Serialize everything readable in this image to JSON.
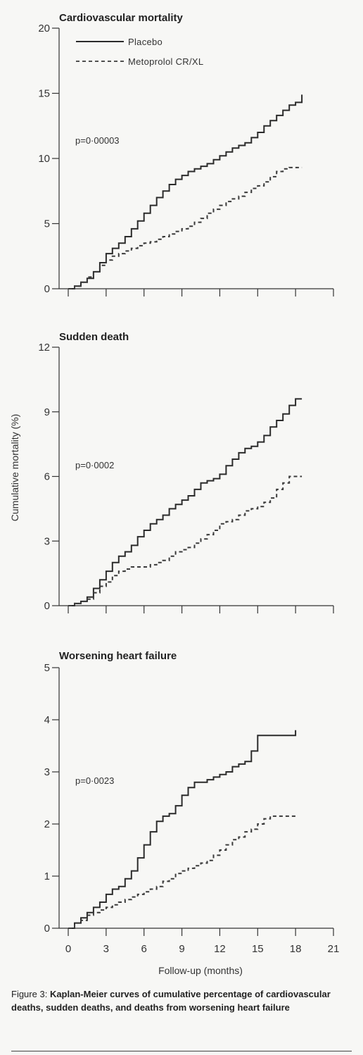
{
  "figure_caption": {
    "label": "Figure 3:",
    "text": "Kaplan-Meier curves of cumulative percentage of cardiovascular deaths, sudden deaths, and deaths from worsening heart failure"
  },
  "legend": {
    "placebo": "Placebo",
    "metoprolol": "Metoprolol CR/XL"
  },
  "colors": {
    "placebo": "#2b2b2b",
    "metoprolol": "#3a3a3a",
    "axis": "#333333"
  },
  "shared_ylabel": "Cumulative mortality (%)",
  "shared_xlabel": "Follow-up (months)",
  "chart_data": [
    {
      "type": "line",
      "title": "Cardiovascular mortality",
      "annotation": "p=0·00003",
      "xlabel": "",
      "ylabel": "",
      "xlim": [
        0,
        21
      ],
      "ylim": [
        0,
        20
      ],
      "yticks": [
        0,
        5,
        10,
        15,
        20
      ],
      "xticks": [
        0,
        3,
        6,
        9,
        12,
        15,
        18,
        21
      ],
      "show_xtick_labels": false,
      "legend": "top-left",
      "series": [
        {
          "name": "Placebo",
          "style": "solid",
          "points": [
            [
              0,
              0
            ],
            [
              0.5,
              0.2
            ],
            [
              1,
              0.5
            ],
            [
              1.5,
              0.8
            ],
            [
              2,
              1.3
            ],
            [
              2.5,
              2
            ],
            [
              3,
              2.7
            ],
            [
              3.5,
              3.1
            ],
            [
              4,
              3.5
            ],
            [
              4.5,
              4
            ],
            [
              5,
              4.6
            ],
            [
              5.5,
              5.2
            ],
            [
              6,
              5.8
            ],
            [
              6.5,
              6.4
            ],
            [
              7,
              7
            ],
            [
              7.5,
              7.5
            ],
            [
              8,
              8
            ],
            [
              8.5,
              8.4
            ],
            [
              9,
              8.7
            ],
            [
              9.5,
              9
            ],
            [
              10,
              9.2
            ],
            [
              10.5,
              9.4
            ],
            [
              11,
              9.6
            ],
            [
              11.5,
              9.9
            ],
            [
              12,
              10.2
            ],
            [
              12.5,
              10.5
            ],
            [
              13,
              10.8
            ],
            [
              13.5,
              11
            ],
            [
              14,
              11.2
            ],
            [
              14.5,
              11.6
            ],
            [
              15,
              12
            ],
            [
              15.5,
              12.5
            ],
            [
              16,
              12.9
            ],
            [
              16.5,
              13.3
            ],
            [
              17,
              13.7
            ],
            [
              17.5,
              14.1
            ],
            [
              18,
              14.3
            ],
            [
              18.5,
              14.9
            ]
          ]
        },
        {
          "name": "Metoprolol CR/XL",
          "style": "dashed",
          "points": [
            [
              0,
              0
            ],
            [
              0.5,
              0.2
            ],
            [
              1,
              0.5
            ],
            [
              1.5,
              0.9
            ],
            [
              2,
              1.3
            ],
            [
              2.5,
              1.8
            ],
            [
              3,
              2.2
            ],
            [
              3.5,
              2.5
            ],
            [
              4,
              2.7
            ],
            [
              4.5,
              2.9
            ],
            [
              5,
              3.1
            ],
            [
              5.5,
              3.3
            ],
            [
              6,
              3.5
            ],
            [
              6.5,
              3.6
            ],
            [
              7,
              3.8
            ],
            [
              7.5,
              4
            ],
            [
              8,
              4.2
            ],
            [
              8.5,
              4.4
            ],
            [
              9,
              4.6
            ],
            [
              9.5,
              4.8
            ],
            [
              10,
              5.1
            ],
            [
              10.5,
              5.4
            ],
            [
              11,
              5.8
            ],
            [
              11.5,
              6.1
            ],
            [
              12,
              6.4
            ],
            [
              12.5,
              6.7
            ],
            [
              13,
              6.9
            ],
            [
              13.5,
              7.1
            ],
            [
              14,
              7.4
            ],
            [
              14.5,
              7.7
            ],
            [
              15,
              7.9
            ],
            [
              15.5,
              8.2
            ],
            [
              16,
              8.6
            ],
            [
              16.5,
              9
            ],
            [
              17,
              9.2
            ],
            [
              17.5,
              9.3
            ],
            [
              18,
              9.3
            ],
            [
              18.5,
              9.3
            ]
          ]
        }
      ]
    },
    {
      "type": "line",
      "title": "Sudden death",
      "annotation": "p=0·0002",
      "xlabel": "",
      "ylabel": "",
      "xlim": [
        0,
        21
      ],
      "ylim": [
        0,
        12
      ],
      "yticks": [
        0,
        3,
        6,
        9,
        12
      ],
      "xticks": [
        0,
        3,
        6,
        9,
        12,
        15,
        18,
        21
      ],
      "show_xtick_labels": false,
      "series": [
        {
          "name": "Placebo",
          "style": "solid",
          "points": [
            [
              0,
              0
            ],
            [
              0.5,
              0.1
            ],
            [
              1,
              0.2
            ],
            [
              1.5,
              0.4
            ],
            [
              2,
              0.8
            ],
            [
              2.5,
              1.2
            ],
            [
              3,
              1.6
            ],
            [
              3.5,
              2
            ],
            [
              4,
              2.3
            ],
            [
              4.5,
              2.5
            ],
            [
              5,
              2.8
            ],
            [
              5.5,
              3.2
            ],
            [
              6,
              3.5
            ],
            [
              6.5,
              3.8
            ],
            [
              7,
              4
            ],
            [
              7.5,
              4.2
            ],
            [
              8,
              4.5
            ],
            [
              8.5,
              4.7
            ],
            [
              9,
              4.9
            ],
            [
              9.5,
              5.1
            ],
            [
              10,
              5.4
            ],
            [
              10.5,
              5.7
            ],
            [
              11,
              5.8
            ],
            [
              11.5,
              5.9
            ],
            [
              12,
              6.1
            ],
            [
              12.5,
              6.5
            ],
            [
              13,
              6.8
            ],
            [
              13.5,
              7.1
            ],
            [
              14,
              7.3
            ],
            [
              14.5,
              7.4
            ],
            [
              15,
              7.6
            ],
            [
              15.5,
              7.9
            ],
            [
              16,
              8.3
            ],
            [
              16.5,
              8.6
            ],
            [
              17,
              8.9
            ],
            [
              17.5,
              9.3
            ],
            [
              18,
              9.6
            ],
            [
              18.5,
              9.6
            ]
          ]
        },
        {
          "name": "Metoprolol CR/XL",
          "style": "dashed",
          "points": [
            [
              0,
              0
            ],
            [
              0.5,
              0.1
            ],
            [
              1,
              0.2
            ],
            [
              1.5,
              0.3
            ],
            [
              2,
              0.6
            ],
            [
              2.5,
              0.9
            ],
            [
              3,
              1.1
            ],
            [
              3.5,
              1.4
            ],
            [
              4,
              1.6
            ],
            [
              4.5,
              1.7
            ],
            [
              5,
              1.8
            ],
            [
              5.5,
              1.8
            ],
            [
              6,
              1.8
            ],
            [
              6.5,
              1.9
            ],
            [
              7,
              2
            ],
            [
              7.5,
              2.1
            ],
            [
              8,
              2.3
            ],
            [
              8.5,
              2.5
            ],
            [
              9,
              2.6
            ],
            [
              9.5,
              2.7
            ],
            [
              10,
              2.9
            ],
            [
              10.5,
              3.1
            ],
            [
              11,
              3.3
            ],
            [
              11.5,
              3.5
            ],
            [
              12,
              3.8
            ],
            [
              12.5,
              3.9
            ],
            [
              13,
              4
            ],
            [
              13.5,
              4.2
            ],
            [
              14,
              4.4
            ],
            [
              14.5,
              4.5
            ],
            [
              15,
              4.6
            ],
            [
              15.5,
              4.8
            ],
            [
              16,
              5
            ],
            [
              16.5,
              5.4
            ],
            [
              17,
              5.7
            ],
            [
              17.5,
              6
            ],
            [
              18,
              6
            ],
            [
              18.5,
              6
            ]
          ]
        }
      ]
    },
    {
      "type": "line",
      "title": "Worsening heart failure",
      "annotation": "p=0·0023",
      "xlabel": "Follow-up (months)",
      "ylabel": "",
      "xlim": [
        0,
        21
      ],
      "ylim": [
        0,
        5
      ],
      "yticks": [
        0,
        1,
        2,
        3,
        4,
        5
      ],
      "xticks": [
        0,
        3,
        6,
        9,
        12,
        15,
        18,
        21
      ],
      "show_xtick_labels": true,
      "series": [
        {
          "name": "Placebo",
          "style": "solid",
          "points": [
            [
              0,
              0
            ],
            [
              0.5,
              0.1
            ],
            [
              1,
              0.2
            ],
            [
              1.5,
              0.3
            ],
            [
              2,
              0.4
            ],
            [
              2.5,
              0.5
            ],
            [
              3,
              0.65
            ],
            [
              3.5,
              0.75
            ],
            [
              4,
              0.8
            ],
            [
              4.5,
              0.95
            ],
            [
              5,
              1.1
            ],
            [
              5.5,
              1.35
            ],
            [
              6,
              1.6
            ],
            [
              6.5,
              1.85
            ],
            [
              7,
              2.05
            ],
            [
              7.5,
              2.15
            ],
            [
              8,
              2.2
            ],
            [
              8.5,
              2.35
            ],
            [
              9,
              2.55
            ],
            [
              9.5,
              2.7
            ],
            [
              10,
              2.8
            ],
            [
              10.5,
              2.8
            ],
            [
              11,
              2.85
            ],
            [
              11.5,
              2.9
            ],
            [
              12,
              2.95
            ],
            [
              12.5,
              3
            ],
            [
              13,
              3.1
            ],
            [
              13.5,
              3.15
            ],
            [
              14,
              3.2
            ],
            [
              14.5,
              3.4
            ],
            [
              15,
              3.7
            ],
            [
              15.5,
              3.7
            ],
            [
              16,
              3.7
            ],
            [
              16.5,
              3.7
            ],
            [
              17,
              3.7
            ],
            [
              17.5,
              3.7
            ],
            [
              18,
              3.8
            ]
          ]
        },
        {
          "name": "Metoprolol CR/XL",
          "style": "dashed",
          "points": [
            [
              0,
              0
            ],
            [
              0.5,
              0.1
            ],
            [
              1,
              0.15
            ],
            [
              1.5,
              0.25
            ],
            [
              2,
              0.3
            ],
            [
              2.5,
              0.35
            ],
            [
              3,
              0.4
            ],
            [
              3.5,
              0.45
            ],
            [
              4,
              0.5
            ],
            [
              4.5,
              0.55
            ],
            [
              5,
              0.6
            ],
            [
              5.5,
              0.65
            ],
            [
              6,
              0.7
            ],
            [
              6.5,
              0.75
            ],
            [
              7,
              0.8
            ],
            [
              7.5,
              0.9
            ],
            [
              8,
              0.95
            ],
            [
              8.5,
              1.05
            ],
            [
              9,
              1.1
            ],
            [
              9.5,
              1.15
            ],
            [
              10,
              1.2
            ],
            [
              10.5,
              1.25
            ],
            [
              11,
              1.3
            ],
            [
              11.5,
              1.4
            ],
            [
              12,
              1.5
            ],
            [
              12.5,
              1.6
            ],
            [
              13,
              1.7
            ],
            [
              13.5,
              1.75
            ],
            [
              14,
              1.85
            ],
            [
              14.5,
              1.9
            ],
            [
              15,
              2
            ],
            [
              15.5,
              2.1
            ],
            [
              16,
              2.15
            ],
            [
              16.5,
              2.15
            ],
            [
              17,
              2.15
            ],
            [
              17.5,
              2.15
            ],
            [
              18,
              2.15
            ]
          ]
        }
      ]
    }
  ]
}
